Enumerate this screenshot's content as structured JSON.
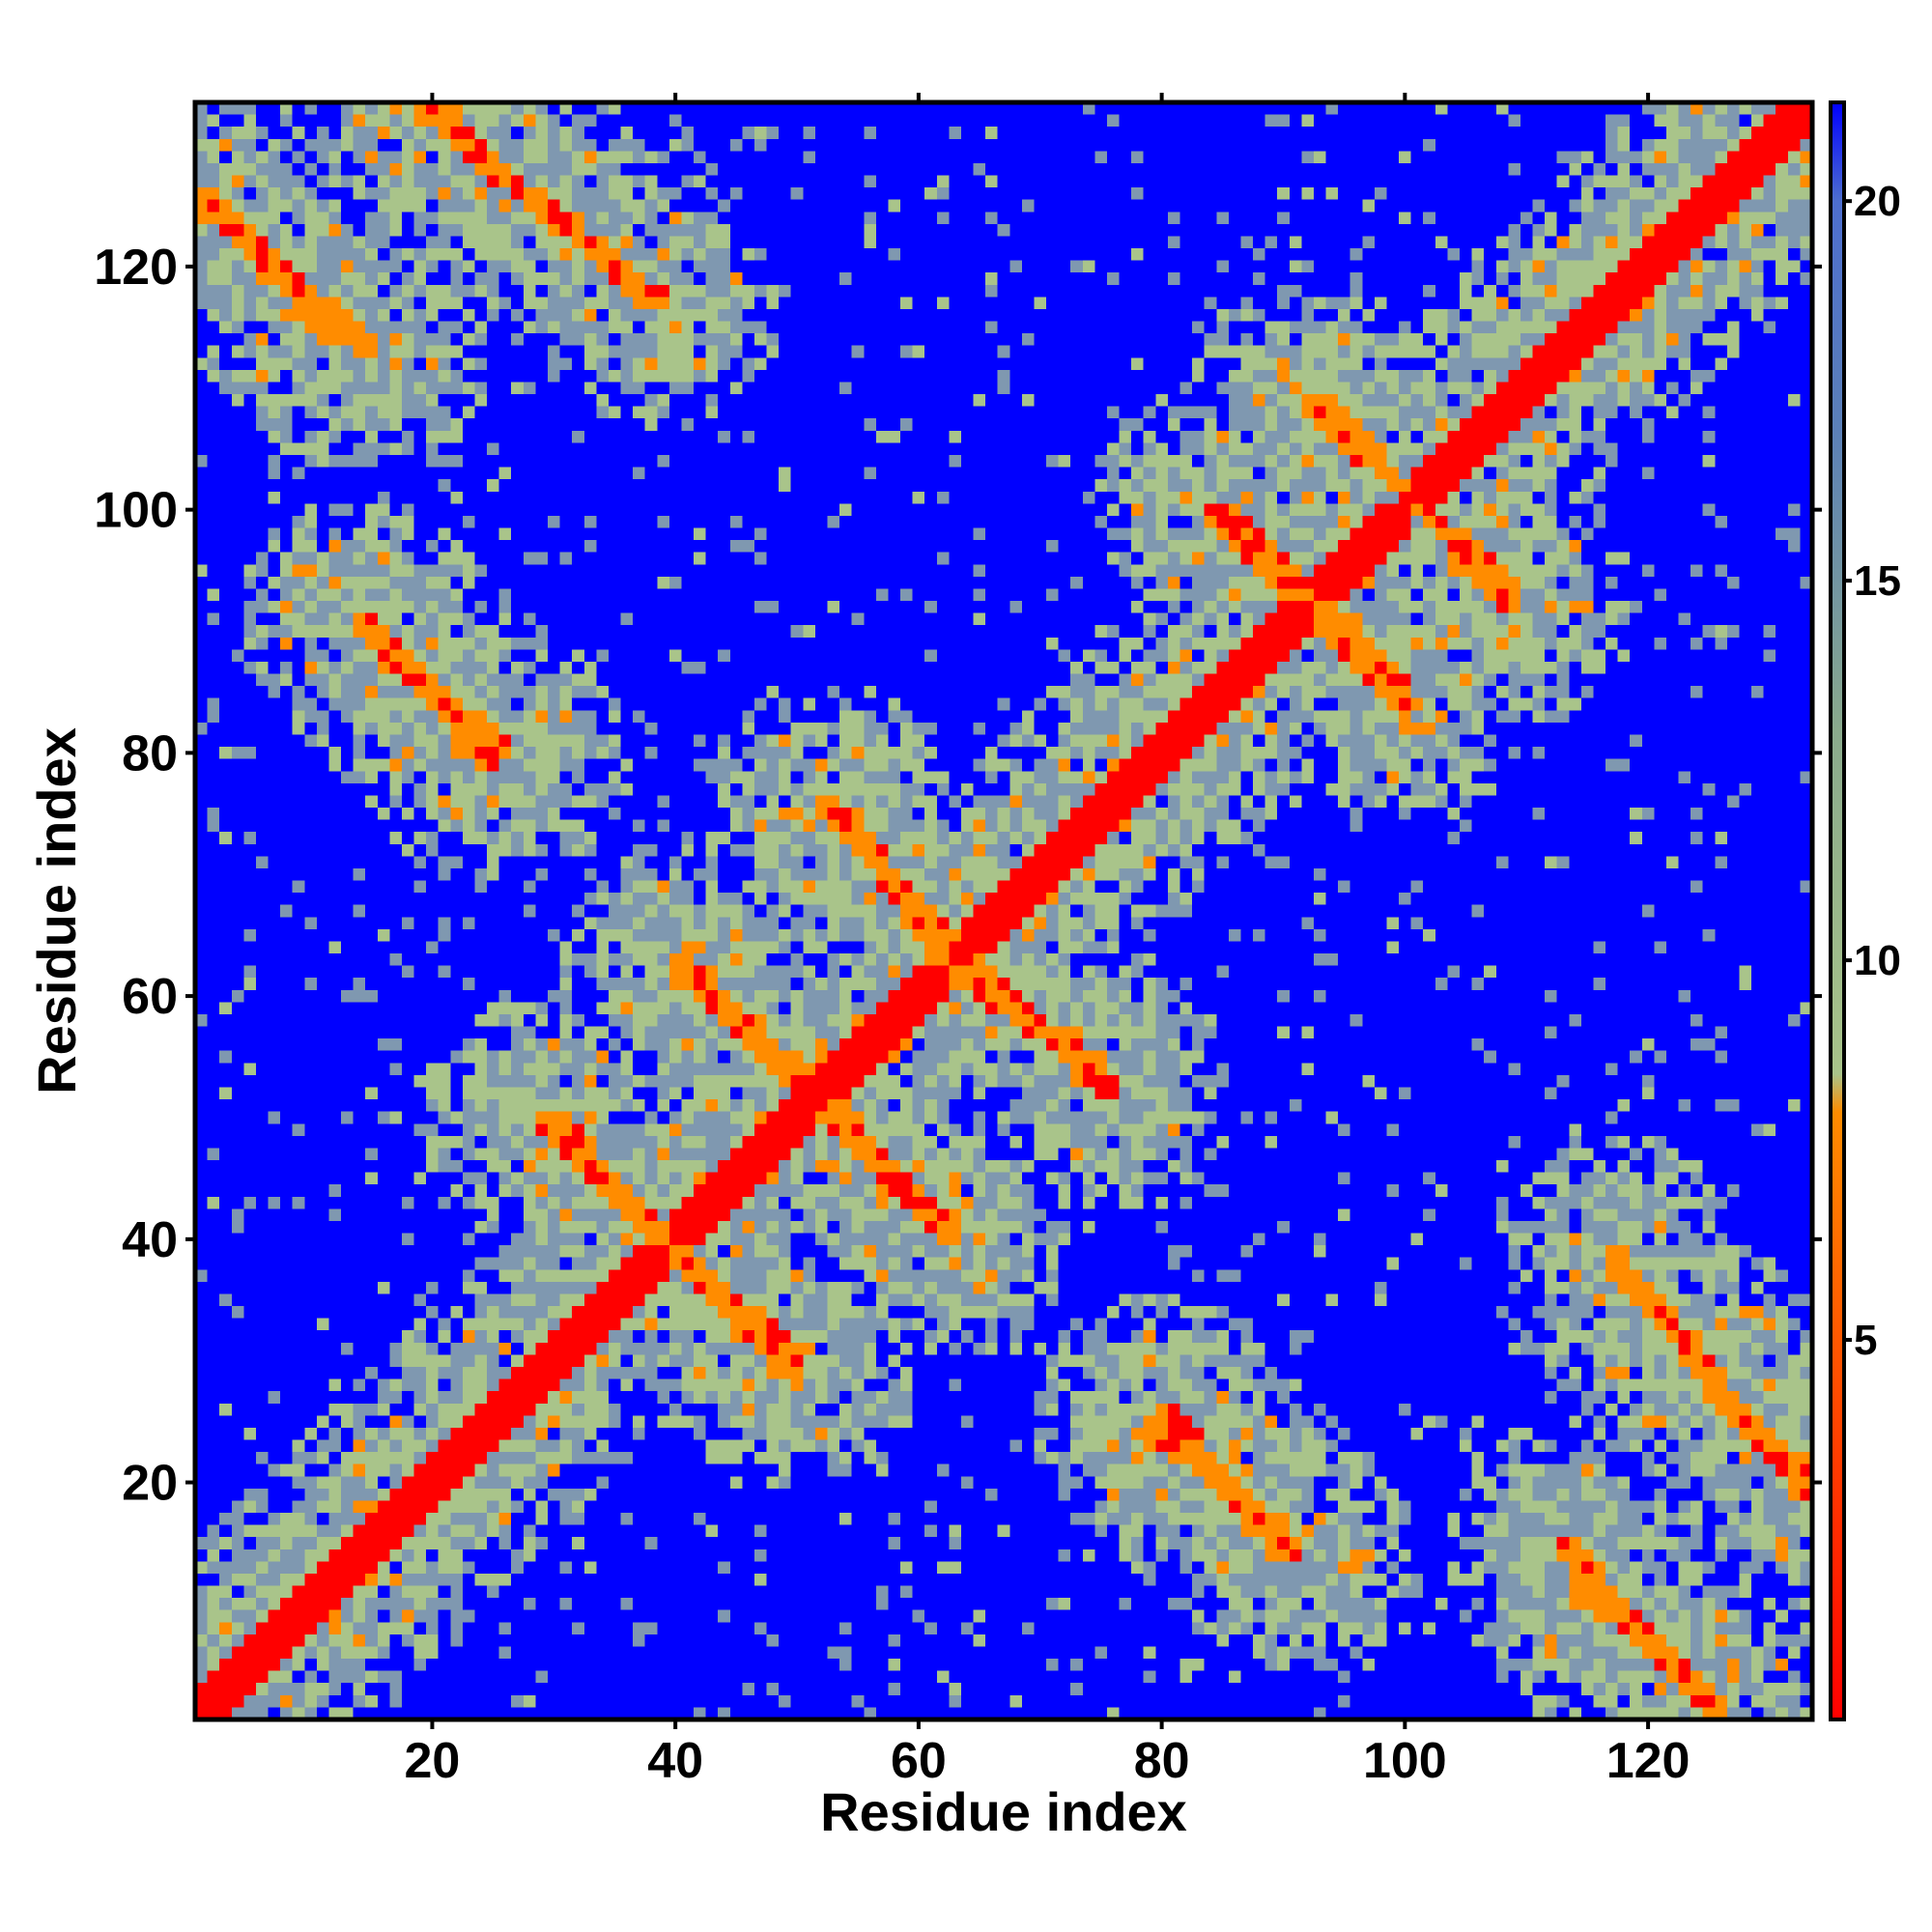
{
  "chart_data": {
    "type": "heatmap",
    "title": "",
    "xlabel": "Residue index",
    "ylabel": "Residue index",
    "n_residues": 133,
    "xlim": [
      1,
      133
    ],
    "ylim": [
      1,
      133
    ],
    "x_ticks": [
      20,
      40,
      60,
      80,
      100,
      120
    ],
    "y_ticks": [
      20,
      40,
      60,
      80,
      100,
      120
    ],
    "grid": false,
    "colorbar": {
      "placement": "right",
      "ticks": [
        5,
        10,
        15,
        20
      ],
      "range": [
        0,
        21.3
      ],
      "stops": [
        {
          "value": 0,
          "color": "#ff0000"
        },
        {
          "value": 8,
          "color": "#ff8c00"
        },
        {
          "value": 8.5,
          "color": "#a9c48a"
        },
        {
          "value": 13,
          "color": "#8aaa8c"
        },
        {
          "value": 17,
          "color": "#5b80b8"
        },
        {
          "value": 20,
          "color": "#4d6ecf"
        },
        {
          "value": 21.3,
          "color": "#0000ff"
        }
      ]
    },
    "palette": {
      "contact": "#ff0000",
      "near": "#ff8c00",
      "mid": "#a9c48a",
      "far": "#7f98b0",
      "none": "#0000ff"
    },
    "contact_bands": [
      {
        "type": "diagonal",
        "from": [
          1,
          1
        ],
        "to": [
          133,
          133
        ]
      },
      {
        "type": "anti",
        "from": [
          30,
          50
        ],
        "to": [
          40,
          39
        ]
      },
      {
        "type": "anti",
        "from": [
          39,
          40
        ],
        "to": [
          50,
          29
        ]
      },
      {
        "type": "anti",
        "from": [
          40,
          63
        ],
        "to": [
          52,
          52
        ]
      },
      {
        "type": "anti",
        "from": [
          52,
          51
        ],
        "to": [
          62,
          41
        ]
      },
      {
        "type": "anti",
        "from": [
          52,
          76
        ],
        "to": [
          64,
          63
        ]
      },
      {
        "type": "anti",
        "from": [
          63,
          62
        ],
        "to": [
          75,
          54
        ]
      },
      {
        "type": "anti",
        "from": [
          84,
          100
        ],
        "to": [
          92,
          92
        ]
      },
      {
        "type": "anti",
        "from": [
          93,
          92
        ],
        "to": [
          100,
          85
        ]
      },
      {
        "type": "anti",
        "from": [
          92,
          109
        ],
        "to": [
          109,
          93
        ]
      },
      {
        "type": "anti",
        "from": [
          14,
          91
        ],
        "to": [
          25,
          79
        ]
      },
      {
        "type": "anti",
        "from": [
          1,
          126
        ],
        "to": [
          12,
          114
        ]
      },
      {
        "type": "anti",
        "from": [
          20,
          134
        ],
        "to": [
          26,
          127
        ]
      },
      {
        "type": "anti",
        "from": [
          28,
          126
        ],
        "to": [
          38,
          117
        ]
      },
      {
        "type": "anti",
        "from": [
          80,
          26
        ],
        "to": [
          91,
          14
        ]
      },
      {
        "type": "anti",
        "from": [
          117,
          39
        ],
        "to": [
          133,
          19
        ]
      },
      {
        "type": "anti",
        "from": [
          113,
          15
        ],
        "to": [
          124,
          3
        ]
      }
    ]
  }
}
